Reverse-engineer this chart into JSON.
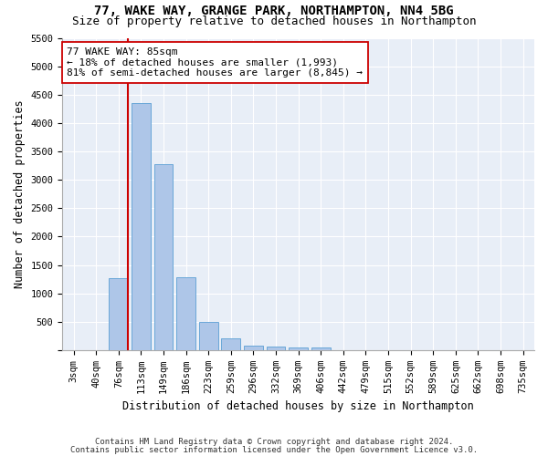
{
  "title1": "77, WAKE WAY, GRANGE PARK, NORTHAMPTON, NN4 5BG",
  "title2": "Size of property relative to detached houses in Northampton",
  "xlabel": "Distribution of detached houses by size in Northampton",
  "ylabel": "Number of detached properties",
  "categories": [
    "3sqm",
    "40sqm",
    "76sqm",
    "113sqm",
    "149sqm",
    "186sqm",
    "223sqm",
    "259sqm",
    "296sqm",
    "332sqm",
    "369sqm",
    "406sqm",
    "442sqm",
    "479sqm",
    "515sqm",
    "552sqm",
    "589sqm",
    "625sqm",
    "662sqm",
    "698sqm",
    "735sqm"
  ],
  "values": [
    0,
    0,
    1270,
    4350,
    3280,
    1280,
    490,
    210,
    80,
    65,
    55,
    55,
    0,
    0,
    0,
    0,
    0,
    0,
    0,
    0,
    0
  ],
  "bar_color": "#aec6e8",
  "bar_edge_color": "#5a9fd4",
  "ref_line_color": "#cc0000",
  "annotation_text": "77 WAKE WAY: 85sqm\n← 18% of detached houses are smaller (1,993)\n81% of semi-detached houses are larger (8,845) →",
  "annotation_box_color": "#ffffff",
  "annotation_box_edge_color": "#cc0000",
  "ylim": [
    0,
    5500
  ],
  "yticks": [
    0,
    500,
    1000,
    1500,
    2000,
    2500,
    3000,
    3500,
    4000,
    4500,
    5000,
    5500
  ],
  "bg_color": "#e8eef7",
  "footer1": "Contains HM Land Registry data © Crown copyright and database right 2024.",
  "footer2": "Contains public sector information licensed under the Open Government Licence v3.0.",
  "title_fontsize": 10,
  "subtitle_fontsize": 9,
  "axis_label_fontsize": 8.5,
  "tick_fontsize": 7.5,
  "annotation_fontsize": 8,
  "footer_fontsize": 6.5
}
